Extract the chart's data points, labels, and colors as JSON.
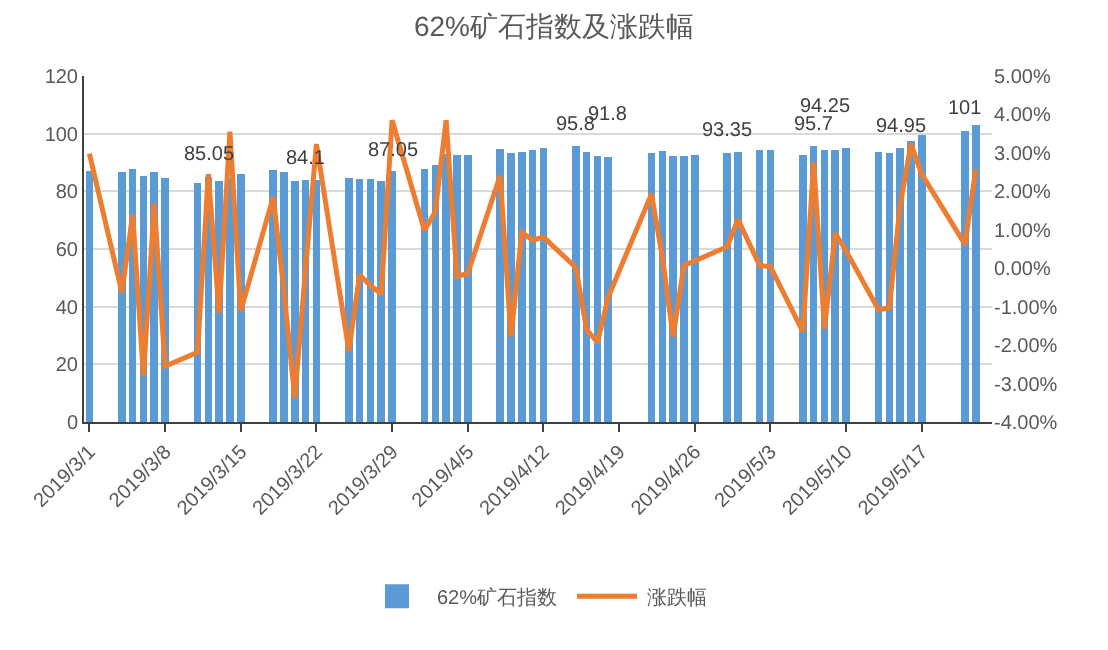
{
  "chart_data": {
    "type": "bar",
    "title": "62%矿石指数及涨跌幅",
    "x": [
      "2019-03-01",
      "2019-03-04",
      "2019-03-05",
      "2019-03-06",
      "2019-03-07",
      "2019-03-08",
      "2019-03-11",
      "2019-03-12",
      "2019-03-13",
      "2019-03-14",
      "2019-03-15",
      "2019-03-18",
      "2019-03-19",
      "2019-03-20",
      "2019-03-21",
      "2019-03-22",
      "2019-03-25",
      "2019-03-26",
      "2019-03-27",
      "2019-03-28",
      "2019-03-29",
      "2019-04-01",
      "2019-04-02",
      "2019-04-03",
      "2019-04-04",
      "2019-04-05",
      "2019-04-08",
      "2019-04-09",
      "2019-04-10",
      "2019-04-11",
      "2019-04-12",
      "2019-04-15",
      "2019-04-16",
      "2019-04-17",
      "2019-04-18",
      "2019-04-22",
      "2019-04-23",
      "2019-04-24",
      "2019-04-25",
      "2019-04-26",
      "2019-04-29",
      "2019-04-30",
      "2019-05-02",
      "2019-05-03",
      "2019-05-06",
      "2019-05-07",
      "2019-05-08",
      "2019-05-09",
      "2019-05-10",
      "2019-05-13",
      "2019-05-14",
      "2019-05-15",
      "2019-05-16",
      "2019-05-17",
      "2019-05-21",
      "2019-05-22"
    ],
    "xlim": [
      "2019-02-28T12:00",
      "2019-05-23T12:00"
    ],
    "xticks": [
      {
        "value": "2019-03-01",
        "label": "2019/3/1"
      },
      {
        "value": "2019-03-08",
        "label": "2019/3/8"
      },
      {
        "value": "2019-03-15",
        "label": "2019/3/15"
      },
      {
        "value": "2019-03-22",
        "label": "2019/3/22"
      },
      {
        "value": "2019-03-29",
        "label": "2019/3/29"
      },
      {
        "value": "2019-04-05",
        "label": "2019/4/5"
      },
      {
        "value": "2019-04-12",
        "label": "2019/4/12"
      },
      {
        "value": "2019-04-19",
        "label": "2019/4/19"
      },
      {
        "value": "2019-04-26",
        "label": "2019/4/26"
      },
      {
        "value": "2019-05-03",
        "label": "2019/5/3"
      },
      {
        "value": "2019-05-10",
        "label": "2019/5/10"
      },
      {
        "value": "2019-05-17",
        "label": "2019/5/17"
      }
    ],
    "ylim": [
      0,
      120
    ],
    "yticks": [
      0,
      20,
      40,
      60,
      80,
      100,
      120
    ],
    "y2lim": [
      -4,
      5
    ],
    "y2ticks": [
      {
        "value": 5,
        "label": "5.00%"
      },
      {
        "value": 4,
        "label": "4.00%"
      },
      {
        "value": 3,
        "label": "3.00%"
      },
      {
        "value": 2,
        "label": "2.00%"
      },
      {
        "value": 1,
        "label": "1.00%"
      },
      {
        "value": 0,
        "label": "0.00%"
      },
      {
        "value": -1,
        "label": "-1.00%"
      },
      {
        "value": -2,
        "label": "-2.00%"
      },
      {
        "value": -3,
        "label": "-3.00%"
      },
      {
        "value": -4,
        "label": "-4.00%"
      }
    ],
    "grid": "y",
    "legend": "bottom",
    "series": [
      {
        "type": "bar",
        "name": "62%矿石指数",
        "color": "#5b9bd5",
        "values": [
          87.1,
          86.7,
          87.8,
          85.4,
          86.7,
          84.7,
          83,
          85.05,
          83.6,
          84.5,
          86,
          87.4,
          86.7,
          83.6,
          84.1,
          84,
          84.7,
          84.3,
          84.3,
          83.6,
          87.05,
          87.8,
          89.1,
          93,
          92.6,
          92.6,
          94.6,
          93.3,
          93.7,
          94.4,
          95,
          95.8,
          93.7,
          92.2,
          91.8,
          93.3,
          93.9,
          92.2,
          92.2,
          92.6,
          93.35,
          93.7,
          94.4,
          94.4,
          92.6,
          95.7,
          94.25,
          94.4,
          95,
          93.7,
          93.3,
          94.95,
          97.4,
          99.6,
          101,
          102.9
        ],
        "value_labels": [
          null,
          null,
          null,
          null,
          null,
          null,
          null,
          "85.05",
          null,
          null,
          null,
          null,
          null,
          null,
          "84.1",
          null,
          null,
          null,
          null,
          null,
          "87.05",
          null,
          null,
          null,
          null,
          null,
          null,
          null,
          null,
          null,
          null,
          "95.8",
          null,
          null,
          "91.8",
          null,
          null,
          null,
          null,
          null,
          "93.35",
          null,
          null,
          null,
          null,
          "95.7",
          "94.25",
          null,
          null,
          null,
          null,
          "94.95",
          null,
          null,
          "101",
          null
        ]
      },
      {
        "type": "line",
        "name": "涨跌幅",
        "color": "#ed7d31",
        "axis": "y2",
        "values": [
          2.98,
          -0.63,
          1.39,
          -2.8,
          1.68,
          -2.55,
          -2.19,
          2.45,
          -1.16,
          3.55,
          -1.11,
          1.85,
          -0.6,
          -3.38,
          0,
          3.23,
          -2.14,
          -0.17,
          -0.45,
          -0.67,
          3.85,
          0.98,
          1.47,
          3.85,
          -0.21,
          -0.14,
          2.41,
          -1.77,
          0.93,
          0.73,
          0.81,
          0.02,
          -1.6,
          -1.93,
          -0.75,
          1.93,
          0.3,
          -1.78,
          0.07,
          0.19,
          0.56,
          1.27,
          0.07,
          0.04,
          -1.65,
          2.75,
          -1.57,
          0.91,
          0.45,
          -1.08,
          -1.03,
          1.63,
          3.23,
          2.45,
          0.62,
          2.58
        ]
      }
    ]
  }
}
